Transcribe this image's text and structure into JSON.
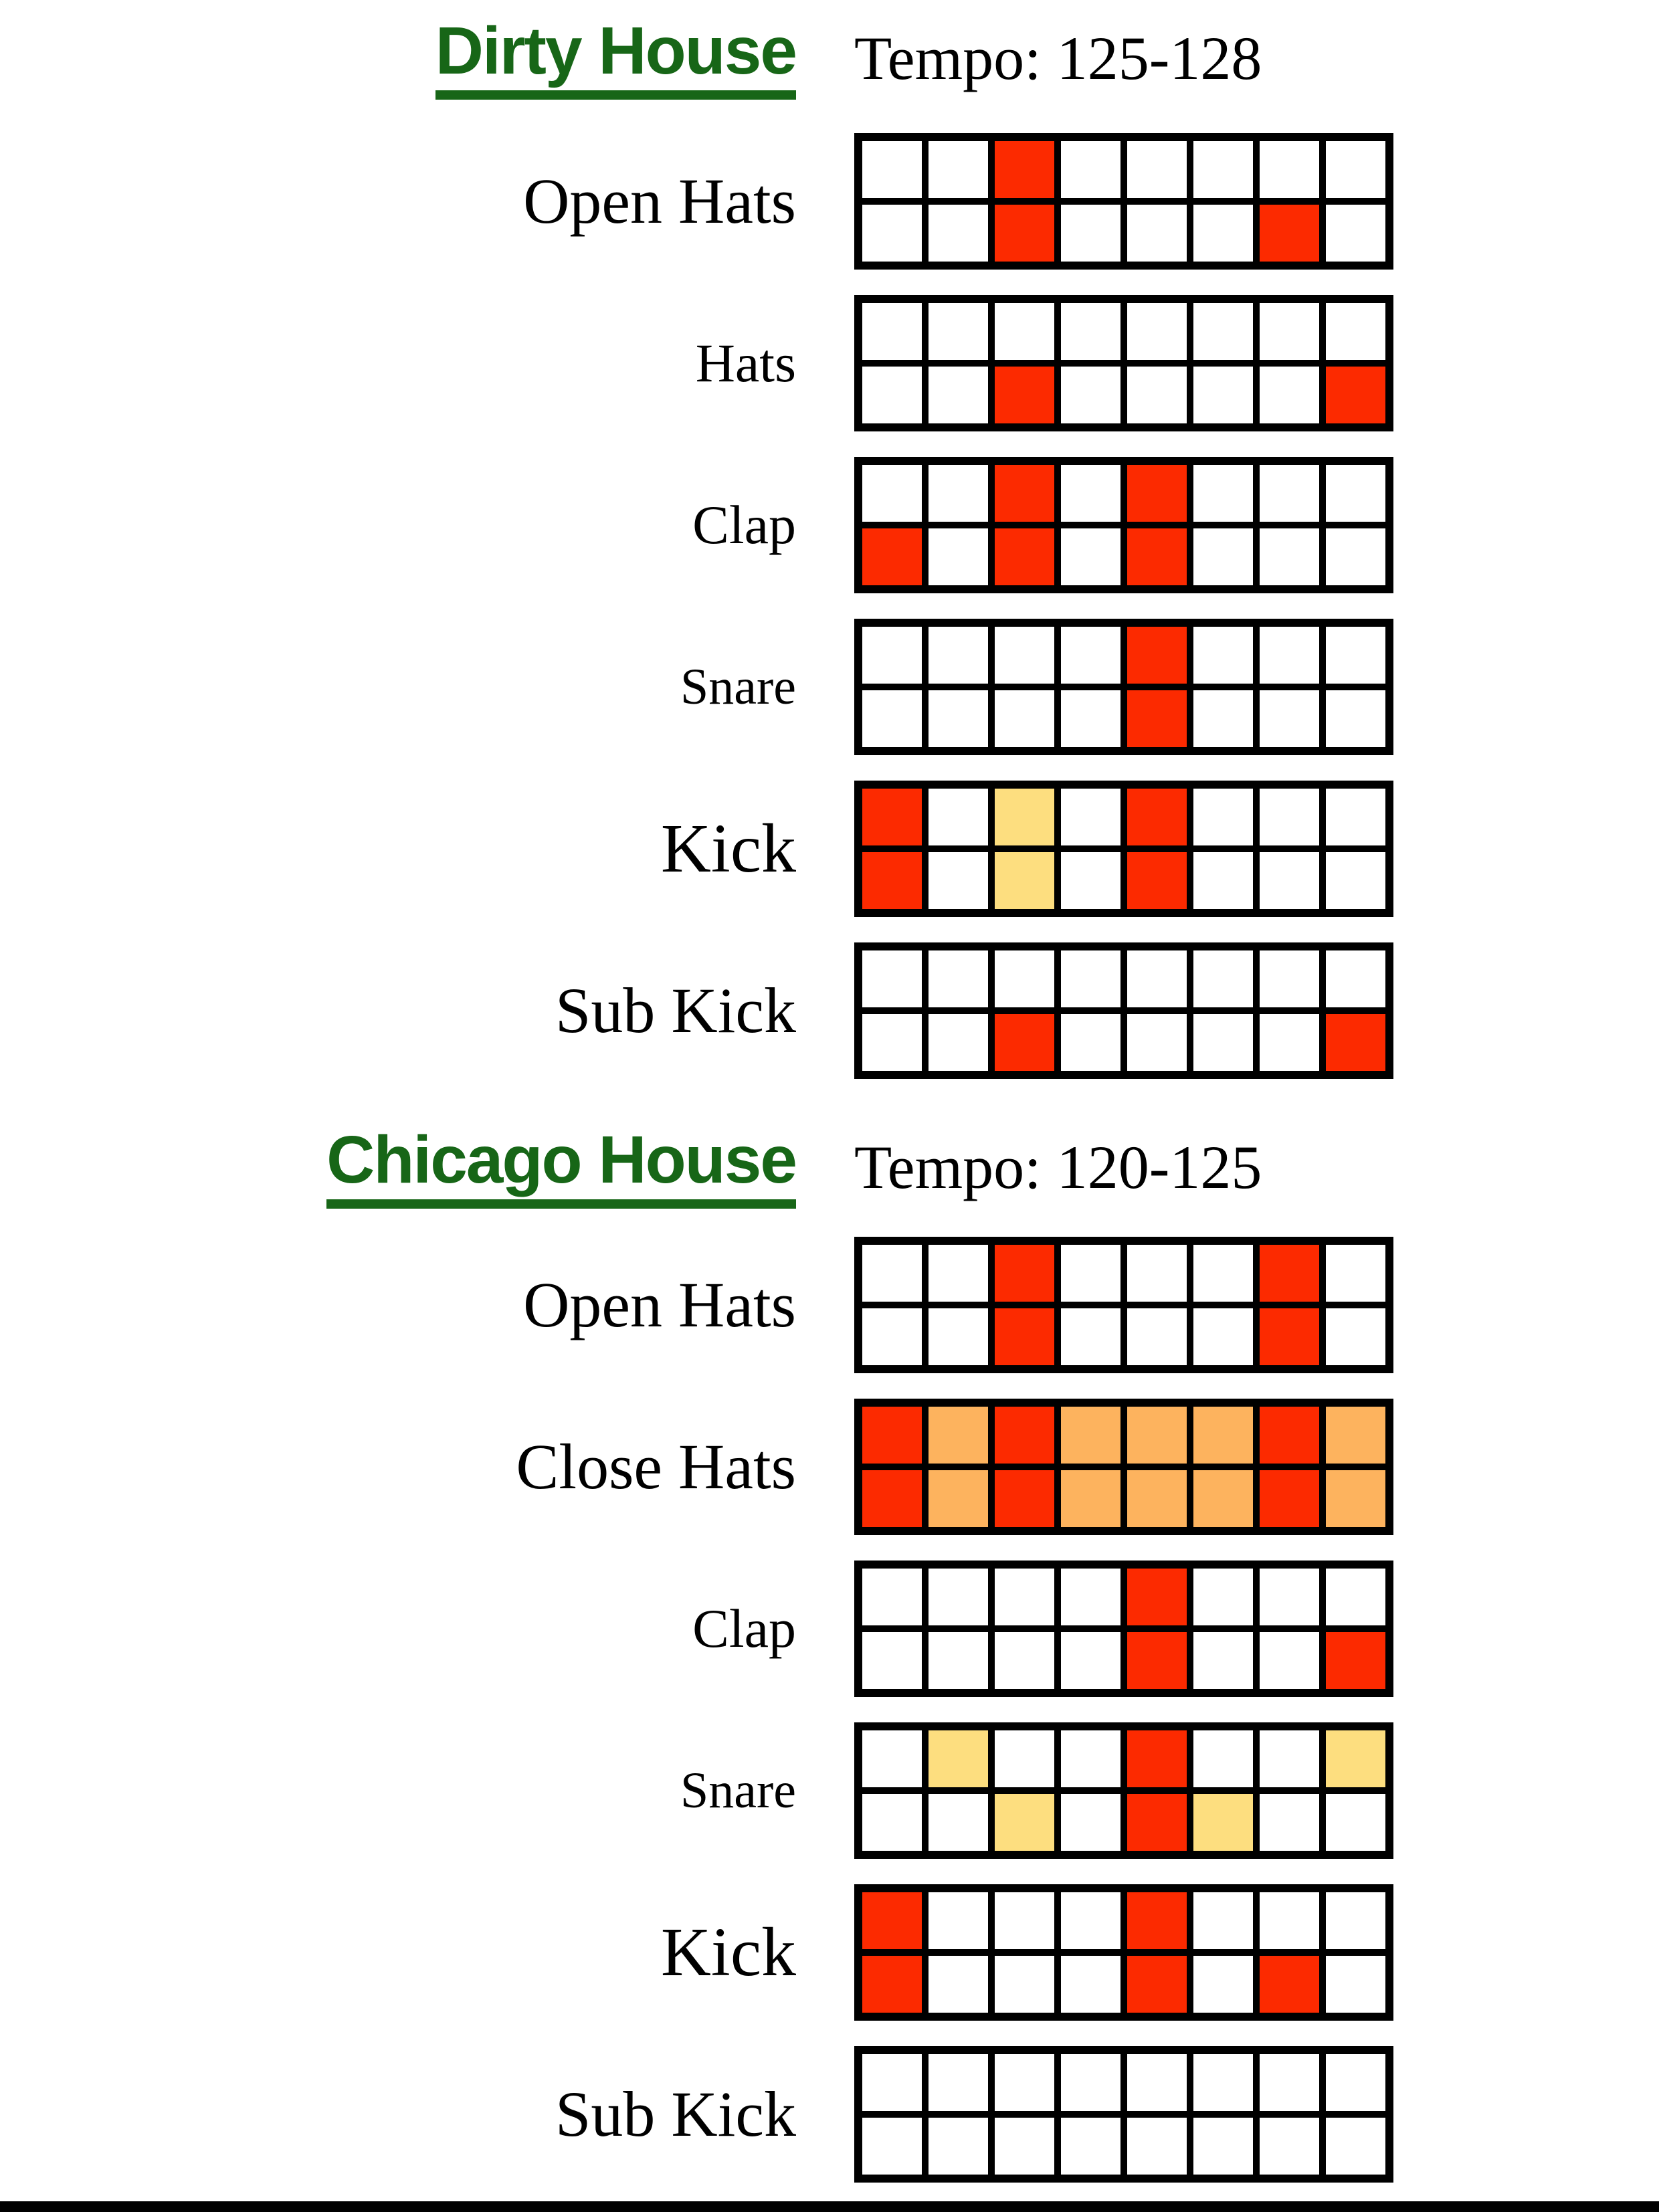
{
  "colors": {
    "red": "#FC2A00",
    "orange": "#FDB35E",
    "yellow": "#FDDE7F",
    "title_green": "#176617",
    "grid_border": "#000000",
    "background": "#FFFFFF"
  },
  "cell_states": {
    "R": "red",
    "O": "orange",
    "Y": "yellow",
    "-": "empty"
  },
  "sections": [
    {
      "title": "Dirty House",
      "tempo": "Tempo: 125-128",
      "rows": [
        {
          "label": "Open Hats",
          "label_size": "lg",
          "cells": [
            [
              "-",
              "-",
              "R",
              "-",
              "-",
              "-",
              "-",
              "-"
            ],
            [
              "-",
              "-",
              "R",
              "-",
              "-",
              "-",
              "R",
              "-"
            ]
          ]
        },
        {
          "label": "Hats",
          "label_size": "md",
          "cells": [
            [
              "-",
              "-",
              "-",
              "-",
              "-",
              "-",
              "-",
              "-"
            ],
            [
              "-",
              "-",
              "R",
              "-",
              "-",
              "-",
              "-",
              "R"
            ]
          ]
        },
        {
          "label": "Clap",
          "label_size": "md",
          "cells": [
            [
              "-",
              "-",
              "R",
              "-",
              "R",
              "-",
              "-",
              "-"
            ],
            [
              "R",
              "-",
              "R",
              "-",
              "R",
              "-",
              "-",
              "-"
            ]
          ]
        },
        {
          "label": "Snare",
          "label_size": "sm",
          "cells": [
            [
              "-",
              "-",
              "-",
              "-",
              "R",
              "-",
              "-",
              "-"
            ],
            [
              "-",
              "-",
              "-",
              "-",
              "R",
              "-",
              "-",
              "-"
            ]
          ]
        },
        {
          "label": "Kick",
          "label_size": "xl",
          "cells": [
            [
              "R",
              "-",
              "Y",
              "-",
              "R",
              "-",
              "-",
              "-"
            ],
            [
              "R",
              "-",
              "Y",
              "-",
              "R",
              "-",
              "-",
              "-"
            ]
          ]
        },
        {
          "label": "Sub Kick",
          "label_size": "lg",
          "cells": [
            [
              "-",
              "-",
              "-",
              "-",
              "-",
              "-",
              "-",
              "-"
            ],
            [
              "-",
              "-",
              "R",
              "-",
              "-",
              "-",
              "-",
              "R"
            ]
          ]
        }
      ]
    },
    {
      "title": "Chicago House",
      "tempo": "Tempo: 120-125",
      "rows": [
        {
          "label": "Open Hats",
          "label_size": "lg",
          "cells": [
            [
              "-",
              "-",
              "R",
              "-",
              "-",
              "-",
              "R",
              "-"
            ],
            [
              "-",
              "-",
              "R",
              "-",
              "-",
              "-",
              "R",
              "-"
            ]
          ]
        },
        {
          "label": "Close Hats",
          "label_size": "lg",
          "cells": [
            [
              "R",
              "O",
              "R",
              "O",
              "O",
              "O",
              "R",
              "O"
            ],
            [
              "R",
              "O",
              "R",
              "O",
              "O",
              "O",
              "R",
              "O"
            ]
          ]
        },
        {
          "label": "Clap",
          "label_size": "md",
          "cells": [
            [
              "-",
              "-",
              "-",
              "-",
              "R",
              "-",
              "-",
              "-"
            ],
            [
              "-",
              "-",
              "-",
              "-",
              "R",
              "-",
              "-",
              "R"
            ]
          ]
        },
        {
          "label": "Snare",
          "label_size": "sm",
          "cells": [
            [
              "-",
              "Y",
              "-",
              "-",
              "R",
              "-",
              "-",
              "Y"
            ],
            [
              "-",
              "-",
              "Y",
              "-",
              "R",
              "Y",
              "-",
              "-"
            ]
          ]
        },
        {
          "label": "Kick",
          "label_size": "xl",
          "cells": [
            [
              "R",
              "-",
              "-",
              "-",
              "R",
              "-",
              "-",
              "-"
            ],
            [
              "R",
              "-",
              "-",
              "-",
              "R",
              "-",
              "R",
              "-"
            ]
          ]
        },
        {
          "label": "Sub Kick",
          "label_size": "lg",
          "cells": [
            [
              "-",
              "-",
              "-",
              "-",
              "-",
              "-",
              "-",
              "-"
            ],
            [
              "-",
              "-",
              "-",
              "-",
              "-",
              "-",
              "-",
              "-"
            ]
          ]
        }
      ]
    }
  ]
}
